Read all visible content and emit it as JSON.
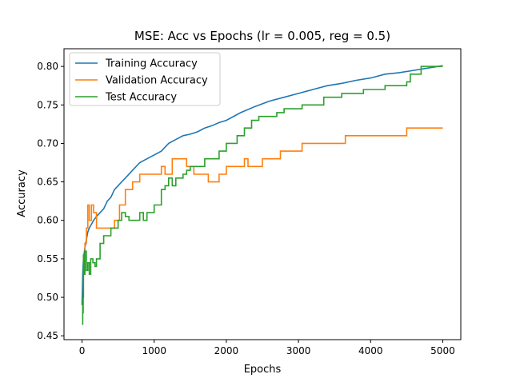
{
  "chart_data": {
    "type": "line",
    "title": "MSE: Acc vs Epochs (lr = 0.005, reg = 0.5)",
    "xlabel": "Epochs",
    "ylabel": "Accuracy",
    "xlim": [
      -250,
      5250
    ],
    "ylim": [
      0.445,
      0.823
    ],
    "xticks": [
      0,
      1000,
      2000,
      3000,
      4000,
      5000
    ],
    "xtick_labels": [
      "0",
      "1000",
      "2000",
      "3000",
      "4000",
      "5000"
    ],
    "yticks": [
      0.45,
      0.5,
      0.55,
      0.6,
      0.65,
      0.7,
      0.75,
      0.8
    ],
    "ytick_labels": [
      "0.45",
      "0.50",
      "0.55",
      "0.60",
      "0.65",
      "0.70",
      "0.75",
      "0.80"
    ],
    "grid": false,
    "legend": "top-left",
    "series": [
      {
        "name": "Training Accuracy",
        "color": "#1f77b4",
        "step": false,
        "x": [
          0,
          5,
          10,
          20,
          40,
          60,
          80,
          100,
          130,
          160,
          200,
          250,
          300,
          350,
          400,
          450,
          500,
          550,
          600,
          700,
          800,
          900,
          1000,
          1100,
          1200,
          1300,
          1400,
          1500,
          1600,
          1700,
          1800,
          1900,
          2000,
          2200,
          2400,
          2600,
          2800,
          3000,
          3200,
          3400,
          3600,
          3800,
          4000,
          4200,
          4400,
          4600,
          4800,
          5000
        ],
        "y": [
          0.49,
          0.51,
          0.53,
          0.55,
          0.565,
          0.575,
          0.585,
          0.59,
          0.595,
          0.6,
          0.605,
          0.61,
          0.615,
          0.625,
          0.63,
          0.64,
          0.645,
          0.65,
          0.655,
          0.665,
          0.675,
          0.68,
          0.685,
          0.69,
          0.7,
          0.705,
          0.71,
          0.712,
          0.715,
          0.72,
          0.723,
          0.727,
          0.73,
          0.74,
          0.748,
          0.755,
          0.76,
          0.765,
          0.77,
          0.775,
          0.778,
          0.782,
          0.785,
          0.79,
          0.792,
          0.795,
          0.798,
          0.801
        ]
      },
      {
        "name": "Validation Accuracy",
        "color": "#ff7f0e",
        "step": true,
        "x": [
          0,
          20,
          40,
          60,
          80,
          100,
          130,
          160,
          200,
          450,
          520,
          600,
          700,
          800,
          1100,
          1150,
          1250,
          1450,
          1550,
          1750,
          1900,
          2000,
          2200,
          2250,
          2300,
          2500,
          2750,
          3050,
          3650,
          4500,
          5000
        ],
        "y": [
          0.48,
          0.53,
          0.57,
          0.59,
          0.62,
          0.6,
          0.62,
          0.61,
          0.59,
          0.6,
          0.62,
          0.64,
          0.65,
          0.66,
          0.67,
          0.66,
          0.68,
          0.67,
          0.66,
          0.65,
          0.66,
          0.67,
          0.67,
          0.68,
          0.67,
          0.68,
          0.69,
          0.7,
          0.71,
          0.72,
          0.72
        ],
        "last": 0.72
      },
      {
        "name": "Test Accuracy",
        "color": "#2ca02c",
        "step": true,
        "x": [
          0,
          10,
          20,
          30,
          40,
          60,
          80,
          100,
          120,
          150,
          180,
          200,
          250,
          300,
          400,
          500,
          550,
          600,
          650,
          700,
          800,
          850,
          900,
          1000,
          1100,
          1150,
          1200,
          1250,
          1300,
          1400,
          1450,
          1500,
          1600,
          1700,
          1800,
          1900,
          2000,
          2150,
          2250,
          2350,
          2450,
          2550,
          2700,
          2800,
          3050,
          3350,
          3600,
          3900,
          4200,
          4300,
          4500,
          4550,
          4700,
          5000
        ],
        "y": [
          0.465,
          0.5,
          0.555,
          0.53,
          0.56,
          0.535,
          0.545,
          0.53,
          0.55,
          0.545,
          0.54,
          0.55,
          0.57,
          0.58,
          0.59,
          0.6,
          0.61,
          0.605,
          0.6,
          0.6,
          0.61,
          0.6,
          0.61,
          0.62,
          0.64,
          0.645,
          0.655,
          0.645,
          0.655,
          0.66,
          0.665,
          0.67,
          0.67,
          0.68,
          0.68,
          0.69,
          0.7,
          0.71,
          0.72,
          0.73,
          0.735,
          0.735,
          0.74,
          0.745,
          0.75,
          0.76,
          0.765,
          0.77,
          0.775,
          0.775,
          0.78,
          0.79,
          0.8,
          0.8
        ],
        "last": 0.8
      }
    ]
  }
}
